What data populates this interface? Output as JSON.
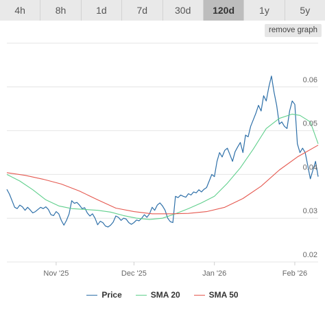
{
  "tabs": [
    {
      "label": "4h"
    },
    {
      "label": "8h"
    },
    {
      "label": "1d"
    },
    {
      "label": "7d"
    },
    {
      "label": "30d"
    },
    {
      "label": "120d",
      "active": true
    },
    {
      "label": "1y"
    },
    {
      "label": "5y"
    }
  ],
  "remove_graph_label": "remove graph",
  "colors": {
    "price": "#2d6fa8",
    "sma20": "#5fcf8c",
    "sma50": "#e5584f",
    "grid": "#e4e4e4"
  },
  "chart_data": {
    "type": "line",
    "grid": true,
    "legend_position": "bottom",
    "x_range": [
      "2025-10-13",
      "2026-02-10"
    ],
    "ylim": [
      0.02,
      0.07
    ],
    "x_ticks": [
      {
        "label": "Nov '25",
        "value": "2025-11-01"
      },
      {
        "label": "Dec '25",
        "value": "2025-12-01"
      },
      {
        "label": "Jan '26",
        "value": "2026-01-01"
      },
      {
        "label": "Feb '26",
        "value": "2026-02-01"
      }
    ],
    "y_ticks": [
      {
        "label": "0.02",
        "value": 0.02
      },
      {
        "label": "0.03",
        "value": 0.03
      },
      {
        "label": "0.04",
        "value": 0.04
      },
      {
        "label": "0.05",
        "value": 0.05
      },
      {
        "label": "0.06",
        "value": 0.06
      }
    ],
    "series": [
      {
        "name": "Price",
        "color": "#2d6fa8",
        "points": [
          [
            "2025-10-13",
            0.0366
          ],
          [
            "2025-10-14",
            0.0355
          ],
          [
            "2025-10-15",
            0.034
          ],
          [
            "2025-10-16",
            0.0325
          ],
          [
            "2025-10-17",
            0.0322
          ],
          [
            "2025-10-18",
            0.033
          ],
          [
            "2025-10-19",
            0.0326
          ],
          [
            "2025-10-20",
            0.0318
          ],
          [
            "2025-10-21",
            0.0325
          ],
          [
            "2025-10-22",
            0.0319
          ],
          [
            "2025-10-23",
            0.0312
          ],
          [
            "2025-10-24",
            0.0315
          ],
          [
            "2025-10-25",
            0.032
          ],
          [
            "2025-10-26",
            0.0325
          ],
          [
            "2025-10-27",
            0.0322
          ],
          [
            "2025-10-28",
            0.0326
          ],
          [
            "2025-10-29",
            0.032
          ],
          [
            "2025-10-30",
            0.0308
          ],
          [
            "2025-10-31",
            0.0306
          ],
          [
            "2025-11-01",
            0.0315
          ],
          [
            "2025-11-02",
            0.031
          ],
          [
            "2025-11-03",
            0.0295
          ],
          [
            "2025-11-04",
            0.0284
          ],
          [
            "2025-11-05",
            0.0295
          ],
          [
            "2025-11-06",
            0.031
          ],
          [
            "2025-11-07",
            0.034
          ],
          [
            "2025-11-08",
            0.0334
          ],
          [
            "2025-11-09",
            0.0336
          ],
          [
            "2025-11-10",
            0.033
          ],
          [
            "2025-11-11",
            0.0322
          ],
          [
            "2025-11-12",
            0.0324
          ],
          [
            "2025-11-13",
            0.0312
          ],
          [
            "2025-11-14",
            0.0305
          ],
          [
            "2025-11-15",
            0.031
          ],
          [
            "2025-11-16",
            0.03
          ],
          [
            "2025-11-17",
            0.0285
          ],
          [
            "2025-11-18",
            0.0293
          ],
          [
            "2025-11-19",
            0.029
          ],
          [
            "2025-11-20",
            0.0282
          ],
          [
            "2025-11-21",
            0.028
          ],
          [
            "2025-11-22",
            0.0284
          ],
          [
            "2025-11-23",
            0.0291
          ],
          [
            "2025-11-24",
            0.0305
          ],
          [
            "2025-11-25",
            0.0302
          ],
          [
            "2025-11-26",
            0.0295
          ],
          [
            "2025-11-27",
            0.03
          ],
          [
            "2025-11-28",
            0.0298
          ],
          [
            "2025-11-29",
            0.029
          ],
          [
            "2025-11-30",
            0.0286
          ],
          [
            "2025-12-01",
            0.029
          ],
          [
            "2025-12-02",
            0.0296
          ],
          [
            "2025-12-03",
            0.0294
          ],
          [
            "2025-12-04",
            0.03
          ],
          [
            "2025-12-05",
            0.0308
          ],
          [
            "2025-12-06",
            0.0302
          ],
          [
            "2025-12-07",
            0.031
          ],
          [
            "2025-12-08",
            0.0325
          ],
          [
            "2025-12-09",
            0.0318
          ],
          [
            "2025-12-10",
            0.033
          ],
          [
            "2025-12-11",
            0.0335
          ],
          [
            "2025-12-12",
            0.0328
          ],
          [
            "2025-12-13",
            0.0318
          ],
          [
            "2025-12-14",
            0.03
          ],
          [
            "2025-12-15",
            0.0292
          ],
          [
            "2025-12-16",
            0.029
          ],
          [
            "2025-12-17",
            0.035
          ],
          [
            "2025-12-18",
            0.0347
          ],
          [
            "2025-12-19",
            0.0353
          ],
          [
            "2025-12-20",
            0.035
          ],
          [
            "2025-12-21",
            0.0348
          ],
          [
            "2025-12-22",
            0.0356
          ],
          [
            "2025-12-23",
            0.0353
          ],
          [
            "2025-12-24",
            0.036
          ],
          [
            "2025-12-25",
            0.0358
          ],
          [
            "2025-12-26",
            0.0365
          ],
          [
            "2025-12-27",
            0.036
          ],
          [
            "2025-12-28",
            0.0366
          ],
          [
            "2025-12-29",
            0.037
          ],
          [
            "2025-12-30",
            0.0385
          ],
          [
            "2025-12-31",
            0.04
          ],
          [
            "2026-01-01",
            0.0395
          ],
          [
            "2026-01-02",
            0.043
          ],
          [
            "2026-01-03",
            0.045
          ],
          [
            "2026-01-04",
            0.044
          ],
          [
            "2026-01-05",
            0.0455
          ],
          [
            "2026-01-06",
            0.046
          ],
          [
            "2026-01-07",
            0.0445
          ],
          [
            "2026-01-08",
            0.043
          ],
          [
            "2026-01-09",
            0.0452
          ],
          [
            "2026-01-10",
            0.0463
          ],
          [
            "2026-01-11",
            0.0473
          ],
          [
            "2026-01-12",
            0.045
          ],
          [
            "2026-01-13",
            0.049
          ],
          [
            "2026-01-14",
            0.0486
          ],
          [
            "2026-01-15",
            0.051
          ],
          [
            "2026-01-16",
            0.0525
          ],
          [
            "2026-01-17",
            0.054
          ],
          [
            "2026-01-18",
            0.0558
          ],
          [
            "2026-01-19",
            0.0545
          ],
          [
            "2026-01-20",
            0.058
          ],
          [
            "2026-01-21",
            0.0568
          ],
          [
            "2026-01-22",
            0.06
          ],
          [
            "2026-01-23",
            0.0625
          ],
          [
            "2026-01-24",
            0.0588
          ],
          [
            "2026-01-25",
            0.0558
          ],
          [
            "2026-01-26",
            0.0515
          ],
          [
            "2026-01-27",
            0.052
          ],
          [
            "2026-01-28",
            0.051
          ],
          [
            "2026-01-29",
            0.0505
          ],
          [
            "2026-01-30",
            0.0545
          ],
          [
            "2026-01-31",
            0.0568
          ],
          [
            "2026-02-01",
            0.056
          ],
          [
            "2026-02-02",
            0.047
          ],
          [
            "2026-02-03",
            0.045
          ],
          [
            "2026-02-04",
            0.046
          ],
          [
            "2026-02-05",
            0.045
          ],
          [
            "2026-02-06",
            0.042
          ],
          [
            "2026-02-07",
            0.039
          ],
          [
            "2026-02-08",
            0.041
          ],
          [
            "2026-02-09",
            0.043
          ],
          [
            "2026-02-10",
            0.0395
          ]
        ]
      },
      {
        "name": "SMA 20",
        "color": "#5fcf8c",
        "points": [
          [
            "2025-10-13",
            0.04
          ],
          [
            "2025-10-18",
            0.0385
          ],
          [
            "2025-10-23",
            0.0365
          ],
          [
            "2025-10-28",
            0.0342
          ],
          [
            "2025-11-02",
            0.0328
          ],
          [
            "2025-11-07",
            0.0322
          ],
          [
            "2025-11-12",
            0.032
          ],
          [
            "2025-11-17",
            0.0318
          ],
          [
            "2025-11-22",
            0.0314
          ],
          [
            "2025-11-27",
            0.0306
          ],
          [
            "2025-12-02",
            0.03
          ],
          [
            "2025-12-07",
            0.0297
          ],
          [
            "2025-12-12",
            0.03
          ],
          [
            "2025-12-17",
            0.031
          ],
          [
            "2025-12-22",
            0.0322
          ],
          [
            "2025-12-27",
            0.0335
          ],
          [
            "2026-01-01",
            0.035
          ],
          [
            "2026-01-06",
            0.038
          ],
          [
            "2026-01-11",
            0.0415
          ],
          [
            "2026-01-16",
            0.0458
          ],
          [
            "2026-01-21",
            0.0505
          ],
          [
            "2026-01-26",
            0.0528
          ],
          [
            "2026-01-31",
            0.0538
          ],
          [
            "2026-02-03",
            0.0535
          ],
          [
            "2026-02-07",
            0.052
          ],
          [
            "2026-02-10",
            0.047
          ]
        ]
      },
      {
        "name": "SMA 50",
        "color": "#e5584f",
        "points": [
          [
            "2025-10-13",
            0.0404
          ],
          [
            "2025-10-20",
            0.0398
          ],
          [
            "2025-10-27",
            0.0389
          ],
          [
            "2025-11-03",
            0.0378
          ],
          [
            "2025-11-10",
            0.0362
          ],
          [
            "2025-11-17",
            0.0342
          ],
          [
            "2025-11-24",
            0.0323
          ],
          [
            "2025-12-01",
            0.0315
          ],
          [
            "2025-12-08",
            0.031
          ],
          [
            "2025-12-15",
            0.031
          ],
          [
            "2025-12-22",
            0.0311
          ],
          [
            "2025-12-29",
            0.0315
          ],
          [
            "2026-01-05",
            0.0325
          ],
          [
            "2026-01-12",
            0.0345
          ],
          [
            "2026-01-19",
            0.0373
          ],
          [
            "2026-01-26",
            0.041
          ],
          [
            "2026-02-02",
            0.044
          ],
          [
            "2026-02-10",
            0.0467
          ]
        ]
      }
    ]
  }
}
